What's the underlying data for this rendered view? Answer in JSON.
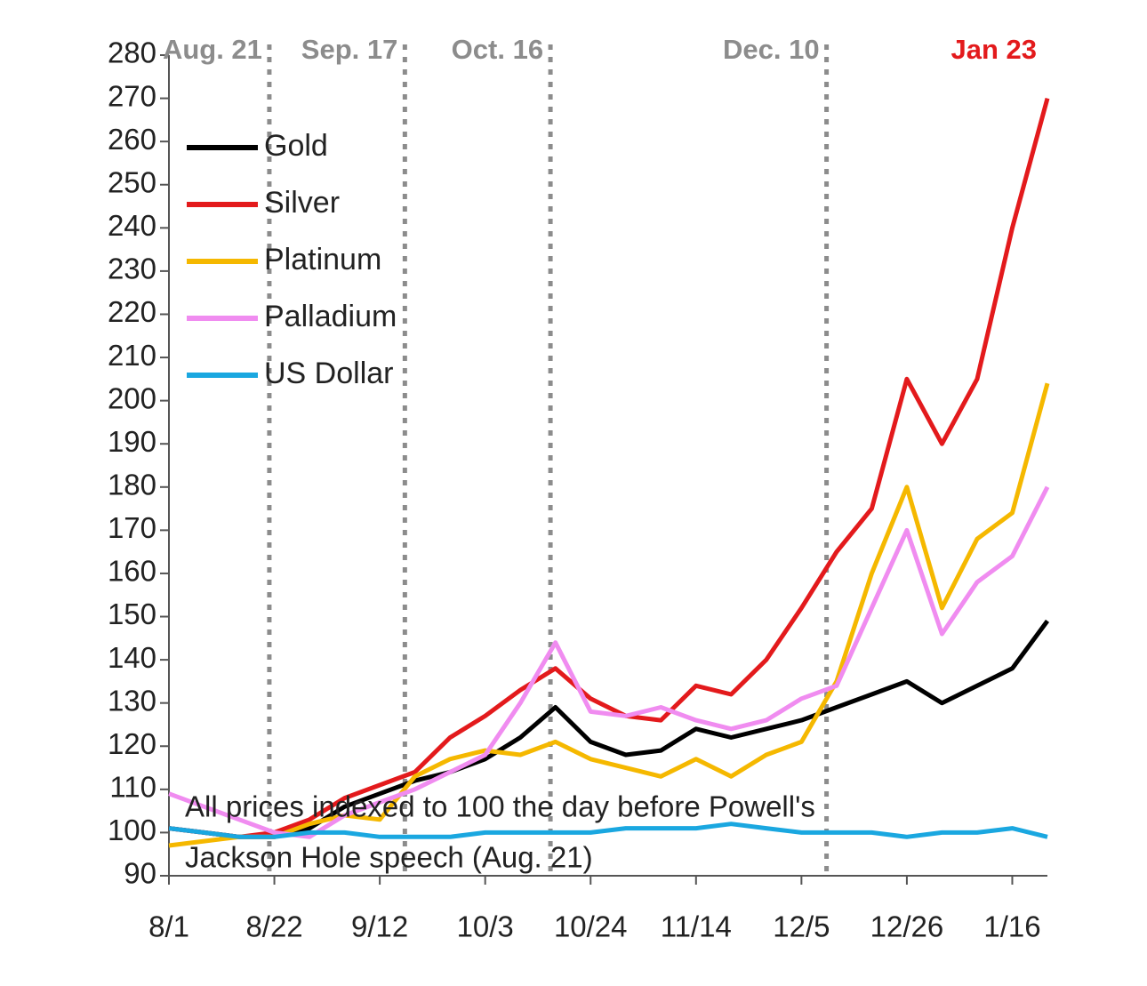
{
  "chart_data": {
    "type": "line",
    "x": [
      "8/1",
      "8/8",
      "8/15",
      "8/22",
      "8/29",
      "9/5",
      "9/12",
      "9/19",
      "9/26",
      "10/3",
      "10/10",
      "10/17",
      "10/24",
      "10/31",
      "11/7",
      "11/14",
      "11/21",
      "11/28",
      "12/5",
      "12/12",
      "12/19",
      "12/26",
      "1/2",
      "1/9",
      "1/16",
      "1/23"
    ],
    "series": [
      {
        "name": "Gold",
        "color": "#000000",
        "values": [
          101,
          100,
          99,
          99,
          101,
          106,
          109,
          112,
          114,
          117,
          122,
          129,
          121,
          118,
          119,
          124,
          122,
          124,
          126,
          129,
          132,
          135,
          130,
          134,
          138,
          149
        ]
      },
      {
        "name": "Silver",
        "color": "#e31a1c",
        "values": [
          101,
          100,
          99,
          100,
          103,
          108,
          111,
          114,
          122,
          127,
          133,
          138,
          131,
          127,
          126,
          134,
          132,
          140,
          152,
          165,
          175,
          205,
          190,
          205,
          240,
          270
        ]
      },
      {
        "name": "Platinum",
        "color": "#f5b800",
        "values": [
          97,
          98,
          99,
          99,
          102,
          104,
          103,
          113,
          117,
          119,
          118,
          121,
          117,
          115,
          113,
          117,
          113,
          118,
          121,
          135,
          160,
          180,
          152,
          168,
          174,
          204
        ]
      },
      {
        "name": "Palladium",
        "color": "#f08cf0",
        "values": [
          109,
          106,
          103,
          100,
          99,
          104,
          107,
          110,
          114,
          118,
          130,
          144,
          128,
          127,
          129,
          126,
          124,
          126,
          131,
          134,
          152,
          170,
          146,
          158,
          164,
          180
        ]
      },
      {
        "name": "US Dollar",
        "color": "#1aa7e0",
        "values": [
          101,
          100,
          99,
          99,
          100,
          100,
          99,
          99,
          99,
          100,
          100,
          100,
          100,
          101,
          101,
          101,
          102,
          101,
          100,
          100,
          100,
          99,
          100,
          100,
          101,
          99
        ]
      }
    ],
    "xlim": [
      "8/1",
      "1/23"
    ],
    "xticks": [
      "8/1",
      "8/22",
      "9/12",
      "10/3",
      "10/24",
      "11/14",
      "12/5",
      "12/26",
      "1/16"
    ],
    "ylim": [
      90,
      280
    ],
    "yticks": [
      90,
      100,
      110,
      120,
      130,
      140,
      150,
      160,
      170,
      180,
      190,
      200,
      210,
      220,
      230,
      240,
      250,
      260,
      270,
      280
    ],
    "legend": "top-left",
    "events": [
      {
        "date": "8/21",
        "label": "Aug. 21",
        "color": "#8c8c8c",
        "dashed": true
      },
      {
        "date": "9/17",
        "label": "Sep. 17",
        "color": "#8c8c8c",
        "dashed": true
      },
      {
        "date": "10/16",
        "label": "Oct. 16",
        "color": "#8c8c8c",
        "dashed": true
      },
      {
        "date": "12/10",
        "label": "Dec. 10",
        "color": "#8c8c8c",
        "dashed": true
      },
      {
        "date": "1/23",
        "label": "Jan 23",
        "color": "#e31a1c",
        "dashed": false
      }
    ],
    "note": [
      "All prices indexed to 100 the day before Powell's",
      "Jackson Hole speech (Aug. 21)"
    ]
  }
}
